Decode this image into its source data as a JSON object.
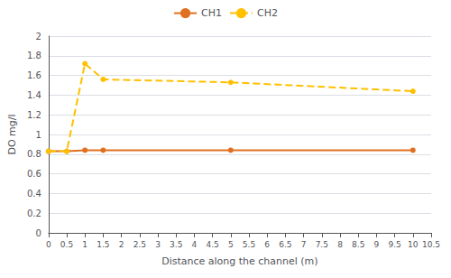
{
  "chart_data": {
    "type": "line",
    "xlabel": "Distance along the channel (m)",
    "ylabel": "DO mg/l",
    "x": [
      0,
      0.5,
      1,
      1.5,
      5,
      10
    ],
    "series": [
      {
        "name": "CH1",
        "color": "#E07020",
        "values": [
          0.83,
          0.83,
          0.84,
          0.84,
          0.84,
          0.84
        ],
        "line_style": "solid",
        "marker": "circle"
      },
      {
        "name": "CH2",
        "color": "#FFC000",
        "values": [
          0.83,
          0.83,
          1.72,
          1.56,
          1.53,
          1.44
        ],
        "line_style": "dashed",
        "marker": "circle"
      }
    ],
    "xlim": [
      0,
      10.5
    ],
    "xticks": [
      0,
      0.5,
      1,
      1.5,
      2,
      2.5,
      3,
      3.5,
      4,
      4.5,
      5,
      5.5,
      6,
      6.5,
      7,
      7.5,
      8,
      8.5,
      9,
      9.5,
      10,
      10.5
    ],
    "ylim": [
      0,
      2
    ],
    "yticks": [
      0,
      0.2,
      0.4,
      0.6,
      0.8,
      1,
      1.2,
      1.4,
      1.6,
      1.8,
      2
    ],
    "grid": true,
    "legend": "top"
  }
}
